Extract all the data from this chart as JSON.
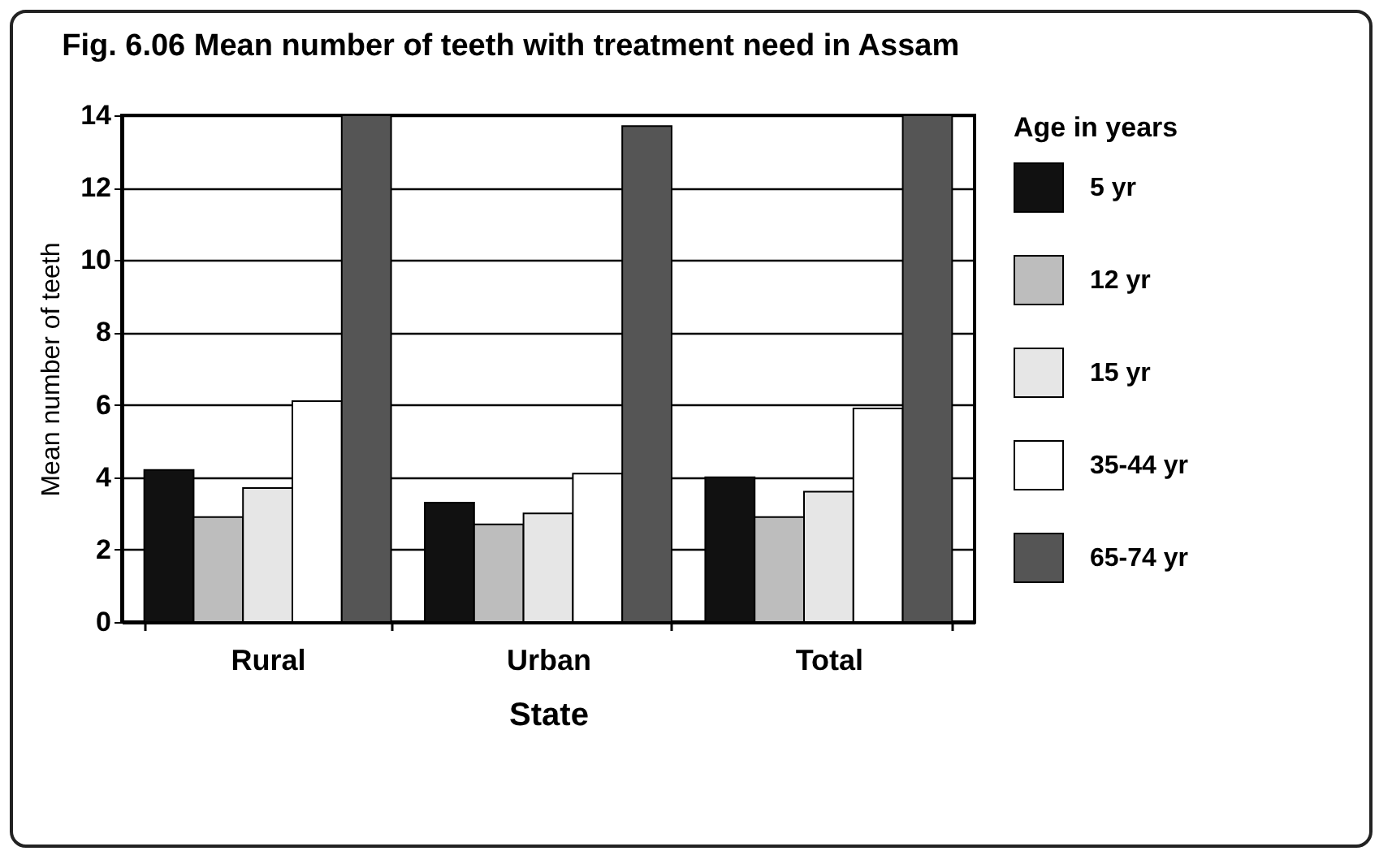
{
  "chart_data": {
    "type": "bar",
    "title": "Fig. 6.06 Mean number of teeth with treatment need in Assam",
    "xlabel": "State",
    "ylabel": "Mean number of teeth",
    "legend_title": "Age in years",
    "categories": [
      "Rural",
      "Urban",
      "Total"
    ],
    "series": [
      {
        "name": "5 yr",
        "color": "#111111",
        "values": [
          4.2,
          3.3,
          4.0
        ]
      },
      {
        "name": "12 yr",
        "color": "#bdbdbd",
        "values": [
          2.9,
          2.7,
          2.9
        ]
      },
      {
        "name": "15 yr",
        "color": "#e6e6e6",
        "values": [
          3.7,
          3.0,
          3.6
        ]
      },
      {
        "name": "35-44 yr",
        "color": "#ffffff",
        "values": [
          6.1,
          4.1,
          5.9
        ]
      },
      {
        "name": "65-74 yr",
        "color": "#555555",
        "values": [
          14.0,
          13.7,
          14.0
        ]
      }
    ],
    "ylim": [
      0,
      14
    ],
    "yticks": [
      0,
      2,
      4,
      6,
      8,
      10,
      12,
      14
    ],
    "grid": "y",
    "legend": "right"
  }
}
